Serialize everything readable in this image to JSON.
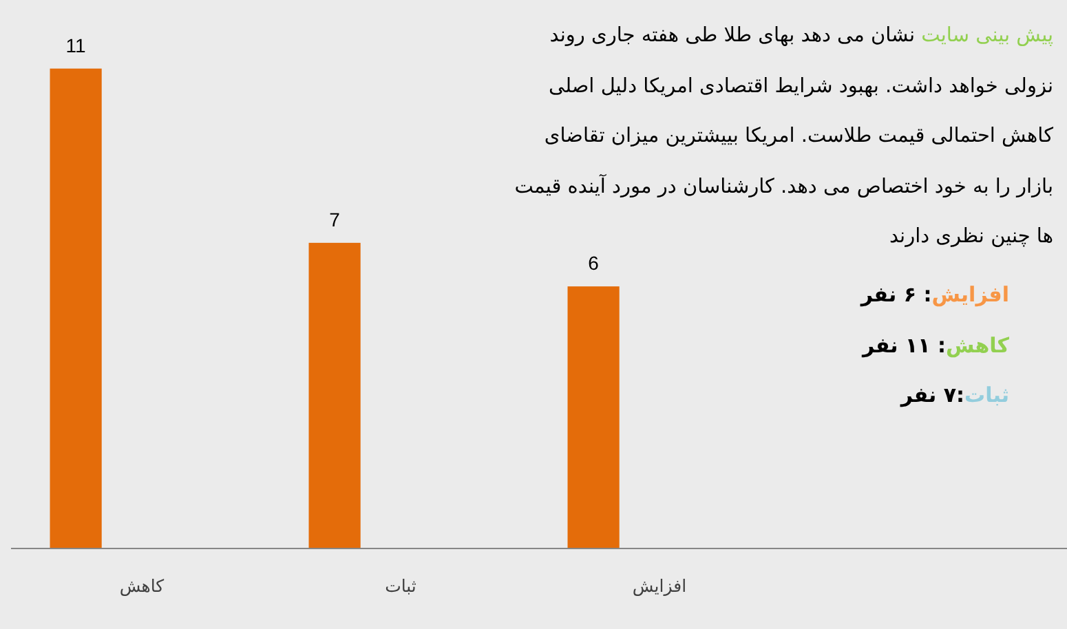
{
  "chart_data": {
    "type": "bar",
    "title": "پیش بینی سایت",
    "subtitle": "نشان می دهد بهای طلا طی هفته جاری روند نزولی خواهد داشت. بهبود شرایط اقتصادی امریکا دلیل اصلی کاهش احتمالی قیمت طلاست. امریکا بییشترین میزان تقاضای بازار را به خود اختصاص می دهد. کارشناسان در مورد آینده قیمت ها چنین نظری دارند",
    "categories": [
      "کاهش",
      "ثبات",
      "افزایش"
    ],
    "values": [
      11,
      7,
      6
    ],
    "color": "#e46c0a",
    "data_labels": true,
    "annotations": [
      "افزایش: ۶ نفر",
      "کاهش: ۱۱ نفر",
      "ثبات:۷ نفر"
    ]
  }
}
